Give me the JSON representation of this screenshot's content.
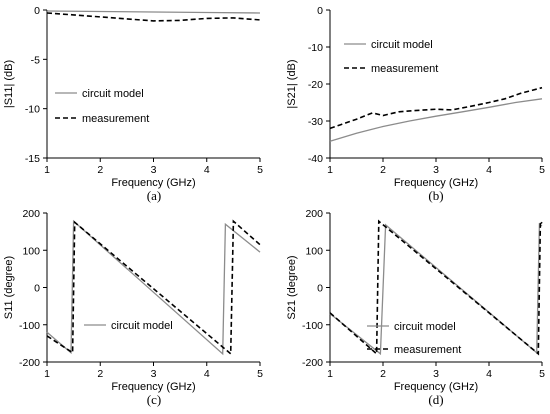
{
  "chart_data": [
    {
      "id": "a",
      "type": "line",
      "caption": "(a)",
      "xlabel": "Frequency (GHz)",
      "ylabel": "|S11| (dB)",
      "xlim": [
        1,
        5
      ],
      "ylim": [
        -15,
        0
      ],
      "xticks": [
        "1",
        "2",
        "3",
        "4",
        "5"
      ],
      "yticks": [
        "0",
        "-5",
        "-10",
        "-15"
      ],
      "xtick_values": [
        1,
        2,
        3,
        4,
        5
      ],
      "ytick_values": [
        0,
        -5,
        -10,
        -15
      ],
      "grid": false,
      "legend_placement": "middle-left",
      "series": [
        {
          "name": "circuit model",
          "style": "solid",
          "color": "#8c8c8c",
          "x": [
            1,
            2,
            3,
            4,
            5
          ],
          "y": [
            -0.1,
            -0.15,
            -0.2,
            -0.25,
            -0.3
          ]
        },
        {
          "name": "measurement",
          "style": "dashed",
          "color": "#000000",
          "x": [
            1,
            1.5,
            2,
            2.5,
            3,
            3.5,
            4,
            4.5,
            5
          ],
          "y": [
            -0.3,
            -0.5,
            -0.7,
            -0.9,
            -1.1,
            -1.05,
            -0.85,
            -0.8,
            -1.0
          ]
        }
      ]
    },
    {
      "id": "b",
      "type": "line",
      "caption": "(b)",
      "xlabel": "Frequency (GHz)",
      "ylabel": "|S21| (dB)",
      "xlim": [
        1,
        5
      ],
      "ylim": [
        -40,
        0
      ],
      "xticks": [
        "1",
        "2",
        "3",
        "4",
        "5"
      ],
      "yticks": [
        "0",
        "-10",
        "-20",
        "-30",
        "-40"
      ],
      "xtick_values": [
        1,
        2,
        3,
        4,
        5
      ],
      "ytick_values": [
        0,
        -10,
        -20,
        -30,
        -40
      ],
      "grid": false,
      "legend_placement": "upper-middle",
      "series": [
        {
          "name": "circuit model",
          "style": "solid",
          "color": "#8c8c8c",
          "x": [
            1,
            1.5,
            2,
            2.5,
            3,
            3.5,
            4,
            4.5,
            5
          ],
          "y": [
            -35.5,
            -33.3,
            -31.5,
            -30.0,
            -28.7,
            -27.5,
            -26.3,
            -25.0,
            -24.0
          ]
        },
        {
          "name": "measurement",
          "style": "dashed",
          "color": "#000000",
          "x": [
            1,
            1.2,
            1.5,
            1.8,
            2,
            2.3,
            2.6,
            3,
            3.3,
            3.6,
            4,
            4.3,
            4.6,
            5
          ],
          "y": [
            -32,
            -31,
            -29.5,
            -27.8,
            -28.5,
            -27.5,
            -27.2,
            -26.8,
            -27,
            -26.2,
            -25,
            -24,
            -22.5,
            -21
          ]
        }
      ]
    },
    {
      "id": "c",
      "type": "line",
      "caption": "(c)",
      "xlabel": "Frequency (GHz)",
      "ylabel": "S11 (degree)",
      "xlim": [
        1,
        5
      ],
      "ylim": [
        -200,
        200
      ],
      "xticks": [
        "1",
        "2",
        "3",
        "4",
        "5"
      ],
      "yticks": [
        "200",
        "100",
        "0",
        "-100",
        "-200"
      ],
      "xtick_values": [
        1,
        2,
        3,
        4,
        5
      ],
      "ytick_values": [
        200,
        100,
        0,
        -100,
        -200
      ],
      "grid": false,
      "legend_placement": "lower-left",
      "series": [
        {
          "name": "circuit model",
          "style": "solid",
          "color": "#8c8c8c",
          "x": [
            1,
            1.45,
            1.45,
            1.5,
            4.3,
            4.3,
            4.35,
            5
          ],
          "y": [
            -120,
            -175,
            -175,
            178,
            -178,
            -178,
            170,
            95
          ]
        },
        {
          "name": "",
          "style": "dashed",
          "color": "#000000",
          "x": [
            1,
            1.48,
            1.48,
            1.52,
            4.45,
            4.45,
            4.5,
            5
          ],
          "y": [
            -130,
            -175,
            -175,
            175,
            -178,
            -178,
            178,
            115
          ]
        }
      ]
    },
    {
      "id": "d",
      "type": "line",
      "caption": "(d)",
      "xlabel": "Frequency (GHz)",
      "ylabel": "S21 (degree)",
      "xlim": [
        1,
        5
      ],
      "ylim": [
        -200,
        200
      ],
      "xticks": [
        "1",
        "2",
        "3",
        "4",
        "5"
      ],
      "yticks": [
        "200",
        "100",
        "0",
        "-100",
        "-200"
      ],
      "xtick_values": [
        1,
        2,
        3,
        4,
        5
      ],
      "ytick_values": [
        200,
        100,
        0,
        -100,
        -200
      ],
      "grid": false,
      "legend_placement": "lower-middle",
      "series": [
        {
          "name": "circuit model",
          "style": "solid",
          "color": "#8c8c8c",
          "x": [
            1,
            1.95,
            1.95,
            2.05,
            4.9,
            4.9,
            4.95,
            5
          ],
          "y": [
            -70,
            -178,
            -178,
            168,
            -175,
            -175,
            170,
            165
          ]
        },
        {
          "name": "measurement",
          "style": "dashed",
          "color": "#000000",
          "x": [
            1,
            1.88,
            1.88,
            1.92,
            4.93,
            4.93,
            4.97,
            5
          ],
          "y": [
            -68,
            -178,
            -178,
            178,
            -178,
            -178,
            178,
            172
          ]
        }
      ]
    }
  ]
}
